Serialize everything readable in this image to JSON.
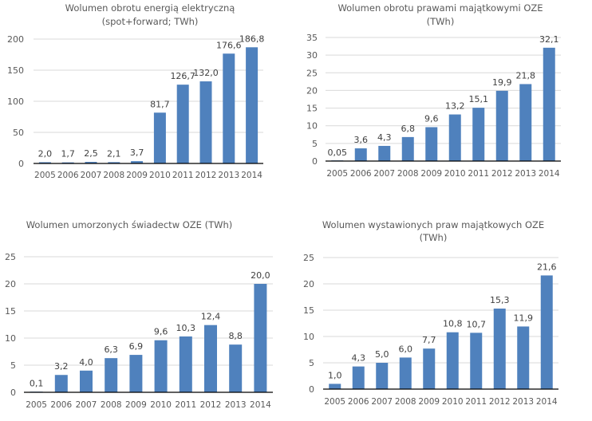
{
  "colors": {
    "bar": "#4f81bd",
    "grid": "#d9d9d9",
    "text": "#595959",
    "axis": "#000000"
  },
  "chart_data": [
    {
      "type": "bar",
      "title": "Wolumen obrotu energią elektryczną",
      "subtitle": "(spot+forward; TWh)",
      "xlabel": "",
      "ylabel": "",
      "categories": [
        "2005",
        "2006",
        "2007",
        "2008",
        "2009",
        "2010",
        "2011",
        "2012",
        "2013",
        "2014"
      ],
      "values": [
        2.0,
        1.7,
        2.5,
        2.1,
        3.7,
        81.7,
        126.7,
        132.0,
        176.6,
        186.8
      ],
      "labels": [
        "2,0",
        "1,7",
        "2,5",
        "2,1",
        "3,7",
        "81,7",
        "126,7",
        "132,0",
        "176,6",
        "186,8"
      ],
      "yticks": [
        0,
        50,
        100,
        150,
        200
      ],
      "ylim": [
        0,
        200
      ],
      "grid": true,
      "legend": "none"
    },
    {
      "type": "bar",
      "title": "Wolumen obrotu prawami majątkowymi OZE",
      "subtitle": "(TWh)",
      "xlabel": "",
      "ylabel": "",
      "categories": [
        "2005",
        "2006",
        "2007",
        "2008",
        "2009",
        "2010",
        "2011",
        "2012",
        "2013",
        "2014"
      ],
      "values": [
        0.05,
        3.6,
        4.3,
        6.8,
        9.6,
        13.2,
        15.1,
        19.9,
        21.8,
        32.1
      ],
      "labels": [
        "0,05",
        "3,6",
        "4,3",
        "6,8",
        "9,6",
        "13,2",
        "15,1",
        "19,9",
        "21,8",
        "32,1"
      ],
      "yticks": [
        0,
        5,
        10,
        15,
        20,
        25,
        30,
        35
      ],
      "ylim": [
        0,
        35
      ],
      "grid": true,
      "legend": "none"
    },
    {
      "type": "bar",
      "title": "Wolumen umorzonych świadectw OZE (TWh)",
      "subtitle": "",
      "xlabel": "",
      "ylabel": "",
      "categories": [
        "2005",
        "2006",
        "2007",
        "2008",
        "2009",
        "2010",
        "2011",
        "2012",
        "2013",
        "2014"
      ],
      "values": [
        0.1,
        3.2,
        4.0,
        6.3,
        6.9,
        9.6,
        10.3,
        12.4,
        8.8,
        20.0
      ],
      "labels": [
        "0,1",
        "3,2",
        "4,0",
        "6,3",
        "6,9",
        "9,6",
        "10,3",
        "12,4",
        "8,8",
        "20,0"
      ],
      "yticks": [
        0,
        5,
        10,
        15,
        20,
        25
      ],
      "ylim": [
        0,
        25
      ],
      "grid": true,
      "legend": "none"
    },
    {
      "type": "bar",
      "title": "Wolumen wystawionych praw majątkowych OZE",
      "subtitle": "(TWh)",
      "xlabel": "",
      "ylabel": "",
      "categories": [
        "2005",
        "2006",
        "2007",
        "2008",
        "2009",
        "2010",
        "2011",
        "2012",
        "2013",
        "2014"
      ],
      "values": [
        1.0,
        4.3,
        5.0,
        6.0,
        7.7,
        10.8,
        10.7,
        15.3,
        11.9,
        21.6
      ],
      "labels": [
        "1,0",
        "4,3",
        "5,0",
        "6,0",
        "7,7",
        "10,8",
        "10,7",
        "15,3",
        "11,9",
        "21,6"
      ],
      "yticks": [
        0,
        5,
        10,
        15,
        20,
        25
      ],
      "ylim": [
        0,
        25
      ],
      "grid": true,
      "legend": "none"
    }
  ]
}
